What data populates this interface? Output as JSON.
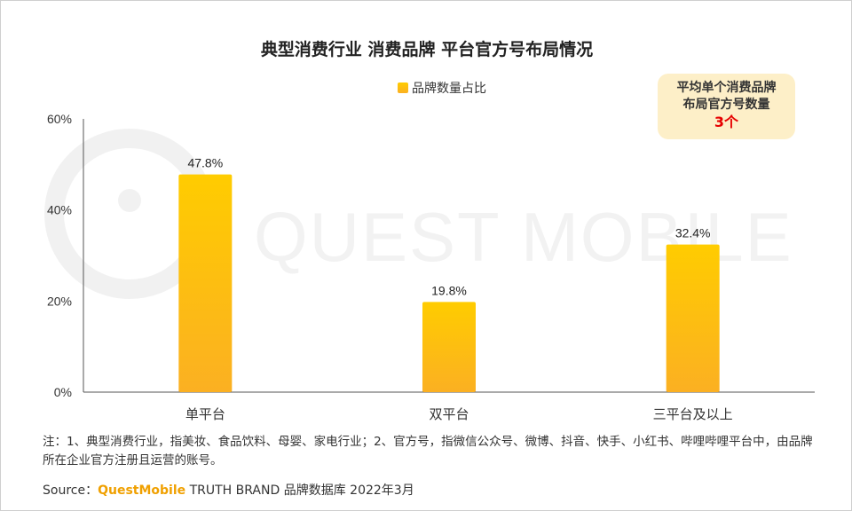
{
  "title": "典型消费行业 消费品牌 平台官方号布局情况",
  "legend": {
    "label": "品牌数量占比",
    "color": "#FDBA12"
  },
  "callout": {
    "line1": "平均单个消费品牌",
    "line2": "布局官方号数量",
    "value": "3个",
    "bg": "#FDEFC8",
    "value_color": "#E60000"
  },
  "watermark": "QUEST MOBILE",
  "chart_data": {
    "type": "bar",
    "categories": [
      "单平台",
      "双平台",
      "三平台及以上"
    ],
    "series": [
      {
        "name": "品牌数量占比",
        "values": [
          47.8,
          19.8,
          32.4
        ],
        "labels": [
          "47.8%",
          "19.8%",
          "32.4%"
        ]
      }
    ],
    "ylim": [
      0,
      60
    ],
    "yticks": [
      "0%",
      "20%",
      "40%",
      "60%"
    ],
    "ytick_values": [
      0,
      20,
      40,
      60
    ],
    "grid": false,
    "bar_color_top": "#FFCC00",
    "bar_color_bottom": "#FBB022"
  },
  "note": "注：1、典型消费行业，指美妆、食品饮料、母婴、家电行业；2、官方号，指微信公众号、微博、抖音、快手、小红书、哔哩哔哩平台中，由品牌所在企业官方注册且运营的账号。",
  "source": {
    "prefix": "Source：",
    "brand": "QuestMobile",
    "suffix": " TRUTH BRAND 品牌数据库 2022年3月"
  }
}
